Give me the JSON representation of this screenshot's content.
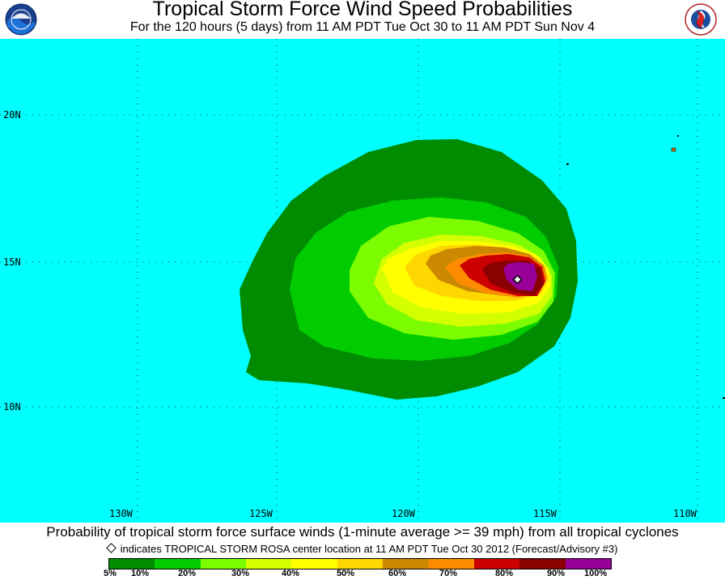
{
  "header": {
    "title": "Tropical Storm Force Wind Speed Probabilities",
    "subtitle": "For the 120 hours (5 days) from 11 AM PDT Tue Oct 30 to 11 AM PDT Sun Nov 4",
    "left_logo_text": "NOAA",
    "right_logo_text": "NATIONAL WEATHER SERVICE"
  },
  "map": {
    "background_color": "#00ffff",
    "lat_labels": [
      "20N",
      "15N",
      "10N"
    ],
    "lon_labels": [
      "130W",
      "125W",
      "120W",
      "115W",
      "110W"
    ],
    "storm_center": {
      "lat": 14.4,
      "lon": -116.4,
      "symbol": "diamond"
    }
  },
  "footer": {
    "caption": "Probability of tropical storm force surface winds (1-minute average >= 39 mph) from all tropical cyclones",
    "note": "indicates TROPICAL STORM ROSA center location at 11 AM PDT Tue Oct 30 2012 (Forecast/Advisory #3)"
  },
  "legend": {
    "colors": [
      "#008c00",
      "#00cc00",
      "#7cfc00",
      "#d4ff00",
      "#ffff00",
      "#ffd700",
      "#cc8800",
      "#ff8c00",
      "#cc0000",
      "#8b0000",
      "#990099"
    ],
    "labels": [
      "5%",
      "10%",
      "20%",
      "30%",
      "40%",
      "50%",
      "60%",
      "70%",
      "80%",
      "90%",
      "100%"
    ]
  }
}
